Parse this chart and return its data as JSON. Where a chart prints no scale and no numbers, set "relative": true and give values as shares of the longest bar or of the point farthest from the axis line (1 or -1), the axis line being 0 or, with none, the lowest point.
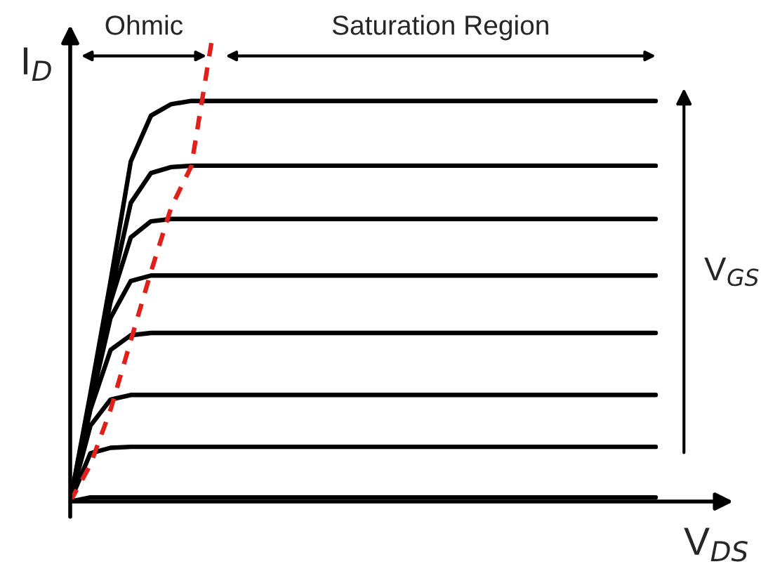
{
  "chart_data": {
    "type": "line",
    "relative": true,
    "legend": false,
    "xlabel": "V$_{DS}$",
    "ylabel": "I$_{D}$",
    "annotations": [
      "Ohmic",
      "Saturation Region",
      "V$_{GS}$"
    ],
    "categories": [
      null,
      null,
      null,
      null,
      null,
      null,
      null,
      null,
      null,
      null,
      null,
      null,
      null,
      null,
      null,
      null,
      null,
      null,
      null,
      null,
      null,
      null,
      null,
      null,
      null,
      null,
      null,
      null,
      null,
      null
    ],
    "series": [
      {
        "color": "#000000",
        "values": [
          0,
          0.235,
          0.48,
          0.74,
          0.84,
          0.865,
          0.872,
          0.872,
          0.872,
          0.872,
          0.872,
          0.872,
          0.872,
          0.872,
          0.872,
          0.872,
          0.872,
          0.872,
          0.872,
          0.872,
          0.872,
          0.872,
          0.872,
          0.872,
          0.872,
          0.872,
          0.872,
          0.872,
          0.872,
          0.872
        ]
      },
      {
        "color": "#000000",
        "values": [
          0,
          0.225,
          0.45,
          0.65,
          0.715,
          0.728,
          0.731,
          0.731,
          0.731,
          0.731,
          0.731,
          0.731,
          0.731,
          0.731,
          0.731,
          0.731,
          0.731,
          0.731,
          0.731,
          0.731,
          0.731,
          0.731,
          0.731,
          0.731,
          0.731,
          0.731,
          0.731,
          0.731,
          0.731,
          0.731
        ]
      },
      {
        "color": "#000000",
        "values": [
          0,
          0.22,
          0.435,
          0.575,
          0.61,
          0.615,
          0.615,
          0.615,
          0.615,
          0.615,
          0.615,
          0.615,
          0.615,
          0.615,
          0.615,
          0.615,
          0.615,
          0.615,
          0.615,
          0.615,
          0.615,
          0.615,
          0.615,
          0.615,
          0.615,
          0.615,
          0.615,
          0.615,
          0.615,
          0.615
        ]
      },
      {
        "color": "#000000",
        "values": [
          0,
          0.21,
          0.4,
          0.48,
          0.492,
          0.492,
          0.492,
          0.492,
          0.492,
          0.492,
          0.492,
          0.492,
          0.492,
          0.492,
          0.492,
          0.492,
          0.492,
          0.492,
          0.492,
          0.492,
          0.492,
          0.492,
          0.492,
          0.492,
          0.492,
          0.492,
          0.492,
          0.492,
          0.492,
          0.492
        ]
      },
      {
        "color": "#000000",
        "values": [
          0,
          0.2,
          0.33,
          0.362,
          0.367,
          0.367,
          0.367,
          0.367,
          0.367,
          0.367,
          0.367,
          0.367,
          0.367,
          0.367,
          0.367,
          0.367,
          0.367,
          0.367,
          0.367,
          0.367,
          0.367,
          0.367,
          0.367,
          0.367,
          0.367,
          0.367,
          0.367,
          0.367,
          0.367,
          0.367
        ]
      },
      {
        "color": "#000000",
        "values": [
          0,
          0.165,
          0.222,
          0.232,
          0.232,
          0.232,
          0.232,
          0.232,
          0.232,
          0.232,
          0.232,
          0.232,
          0.232,
          0.232,
          0.232,
          0.232,
          0.232,
          0.232,
          0.232,
          0.232,
          0.232,
          0.232,
          0.232,
          0.232,
          0.232,
          0.232,
          0.232,
          0.232,
          0.232,
          0.232
        ]
      },
      {
        "color": "#000000",
        "values": [
          0,
          0.105,
          0.117,
          0.119,
          0.119,
          0.119,
          0.119,
          0.119,
          0.119,
          0.119,
          0.119,
          0.119,
          0.119,
          0.119,
          0.119,
          0.119,
          0.119,
          0.119,
          0.119,
          0.119,
          0.119,
          0.119,
          0.119,
          0.119,
          0.119,
          0.119,
          0.119,
          0.119,
          0.119,
          0.119
        ]
      },
      {
        "color": "#000000",
        "values": [
          0,
          0.009,
          0.009,
          0.009,
          0.009,
          0.009,
          0.009,
          0.009,
          0.009,
          0.009,
          0.009,
          0.009,
          0.009,
          0.009,
          0.009,
          0.009,
          0.009,
          0.009,
          0.009,
          0.009,
          0.009,
          0.009,
          0.009,
          0.009,
          0.009,
          0.009,
          0.009,
          0.009,
          0.009,
          0.009
        ]
      },
      {
        "color": "#e0201b",
        "line_style": "dashed",
        "values": [
          0,
          0.08,
          0.2,
          0.35,
          0.5,
          0.64,
          0.73,
          1.0,
          null,
          null,
          null,
          null,
          null,
          null,
          null,
          null,
          null,
          null,
          null,
          null,
          null,
          null,
          null,
          null,
          null,
          null,
          null,
          null,
          null,
          null
        ]
      }
    ]
  }
}
